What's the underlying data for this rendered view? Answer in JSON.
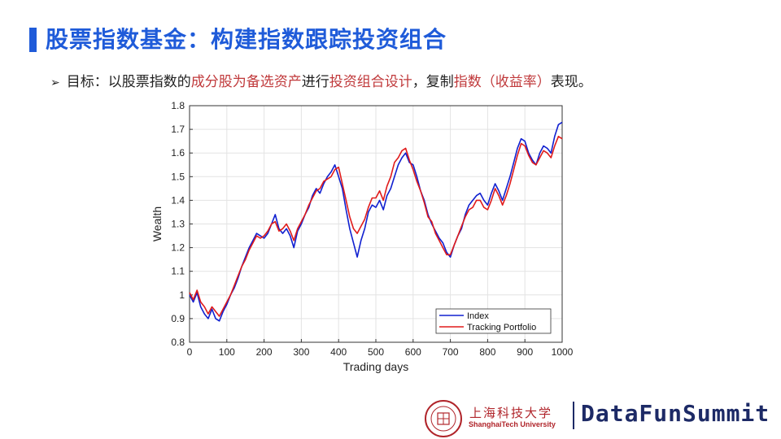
{
  "slide": {
    "title": "股票指数基金：构建指数跟踪投资组合",
    "goal": {
      "bullet": "➢",
      "segments": [
        {
          "text": "目标：以股票指数的",
          "highlight": false
        },
        {
          "text": "成分股为备选资产",
          "highlight": true
        },
        {
          "text": "进行",
          "highlight": false
        },
        {
          "text": "投资组合设计",
          "highlight": true
        },
        {
          "text": "，复制",
          "highlight": false
        },
        {
          "text": "指数（收益率）",
          "highlight": true
        },
        {
          "text": "表现。",
          "highlight": false
        }
      ]
    }
  },
  "footer": {
    "university_cn": "上海科技大学",
    "university_en": "ShanghaiTech University",
    "brand": "DataFunSummit",
    "logo_icon": "university-seal-icon"
  },
  "colors": {
    "title": "#1f5bd9",
    "highlight": "#c0393b",
    "index_line": "#1020d0",
    "tracking_line": "#e01b1b",
    "brand": "#1d2a66",
    "university": "#b0242a"
  },
  "chart_data": {
    "type": "line",
    "title": "",
    "xlabel": "Trading days",
    "ylabel": "Wealth",
    "xlim": [
      0,
      1000
    ],
    "ylim": [
      0.8,
      1.8
    ],
    "xticks": [
      0,
      100,
      200,
      300,
      400,
      500,
      600,
      700,
      800,
      900,
      1000
    ],
    "yticks": [
      0.8,
      0.9,
      1,
      1.1,
      1.2,
      1.3,
      1.4,
      1.5,
      1.6,
      1.7,
      1.8
    ],
    "ytick_labels": [
      "0.8",
      "0.9",
      "1",
      "1.1",
      "1.2",
      "1.3",
      "1.4",
      "1.5",
      "1.6",
      "1.7",
      "1.8"
    ],
    "grid": true,
    "legend_position": "bottom-right",
    "series": [
      {
        "name": "Index",
        "color": "#1020d0",
        "x": [
          0,
          10,
          20,
          30,
          40,
          50,
          60,
          70,
          80,
          90,
          100,
          110,
          120,
          130,
          140,
          150,
          160,
          170,
          180,
          190,
          200,
          210,
          220,
          230,
          240,
          250,
          260,
          270,
          280,
          290,
          300,
          310,
          320,
          330,
          340,
          350,
          360,
          370,
          380,
          390,
          400,
          410,
          420,
          430,
          440,
          450,
          460,
          470,
          480,
          490,
          500,
          510,
          520,
          530,
          540,
          550,
          560,
          570,
          580,
          590,
          600,
          610,
          620,
          630,
          640,
          650,
          660,
          670,
          680,
          690,
          700,
          710,
          720,
          730,
          740,
          750,
          760,
          770,
          780,
          790,
          800,
          810,
          820,
          830,
          840,
          850,
          860,
          870,
          880,
          890,
          900,
          910,
          920,
          930,
          940,
          950,
          960,
          970,
          980,
          990,
          1000
        ],
        "y": [
          1.0,
          0.97,
          1.01,
          0.95,
          0.92,
          0.9,
          0.94,
          0.9,
          0.89,
          0.93,
          0.96,
          1.0,
          1.03,
          1.07,
          1.12,
          1.16,
          1.2,
          1.23,
          1.26,
          1.25,
          1.24,
          1.26,
          1.3,
          1.34,
          1.28,
          1.26,
          1.28,
          1.25,
          1.2,
          1.27,
          1.3,
          1.34,
          1.37,
          1.42,
          1.45,
          1.43,
          1.47,
          1.5,
          1.52,
          1.55,
          1.5,
          1.45,
          1.36,
          1.28,
          1.22,
          1.16,
          1.23,
          1.28,
          1.35,
          1.38,
          1.37,
          1.4,
          1.36,
          1.42,
          1.45,
          1.5,
          1.55,
          1.58,
          1.6,
          1.56,
          1.55,
          1.5,
          1.44,
          1.4,
          1.34,
          1.3,
          1.27,
          1.24,
          1.22,
          1.18,
          1.16,
          1.21,
          1.25,
          1.28,
          1.34,
          1.38,
          1.4,
          1.42,
          1.43,
          1.4,
          1.38,
          1.43,
          1.47,
          1.44,
          1.4,
          1.45,
          1.5,
          1.56,
          1.62,
          1.66,
          1.65,
          1.6,
          1.57,
          1.55,
          1.6,
          1.63,
          1.62,
          1.6,
          1.67,
          1.72,
          1.73
        ]
      },
      {
        "name": "Tracking Portfolio",
        "color": "#e01b1b",
        "x": [
          0,
          10,
          20,
          30,
          40,
          50,
          60,
          70,
          80,
          90,
          100,
          110,
          120,
          130,
          140,
          150,
          160,
          170,
          180,
          190,
          200,
          210,
          220,
          230,
          240,
          250,
          260,
          270,
          280,
          290,
          300,
          310,
          320,
          330,
          340,
          350,
          360,
          370,
          380,
          390,
          400,
          410,
          420,
          430,
          440,
          450,
          460,
          470,
          480,
          490,
          500,
          510,
          520,
          530,
          540,
          550,
          560,
          570,
          580,
          590,
          600,
          610,
          620,
          630,
          640,
          650,
          660,
          670,
          680,
          690,
          700,
          710,
          720,
          730,
          740,
          750,
          760,
          770,
          780,
          790,
          800,
          810,
          820,
          830,
          840,
          850,
          860,
          870,
          880,
          890,
          900,
          910,
          920,
          930,
          940,
          950,
          960,
          970,
          980,
          990,
          1000
        ],
        "y": [
          1.01,
          0.98,
          1.02,
          0.97,
          0.95,
          0.92,
          0.95,
          0.93,
          0.91,
          0.94,
          0.97,
          1.0,
          1.04,
          1.08,
          1.12,
          1.15,
          1.19,
          1.22,
          1.25,
          1.24,
          1.25,
          1.27,
          1.3,
          1.31,
          1.27,
          1.28,
          1.3,
          1.27,
          1.23,
          1.28,
          1.31,
          1.34,
          1.38,
          1.41,
          1.44,
          1.45,
          1.48,
          1.49,
          1.5,
          1.53,
          1.54,
          1.47,
          1.4,
          1.33,
          1.28,
          1.26,
          1.29,
          1.32,
          1.37,
          1.41,
          1.41,
          1.44,
          1.4,
          1.46,
          1.5,
          1.56,
          1.58,
          1.61,
          1.62,
          1.57,
          1.53,
          1.48,
          1.44,
          1.39,
          1.33,
          1.31,
          1.26,
          1.23,
          1.2,
          1.17,
          1.17,
          1.21,
          1.25,
          1.29,
          1.33,
          1.36,
          1.37,
          1.4,
          1.4,
          1.37,
          1.36,
          1.4,
          1.45,
          1.42,
          1.38,
          1.42,
          1.47,
          1.53,
          1.59,
          1.64,
          1.63,
          1.59,
          1.56,
          1.55,
          1.58,
          1.61,
          1.6,
          1.58,
          1.63,
          1.67,
          1.66
        ]
      }
    ]
  }
}
